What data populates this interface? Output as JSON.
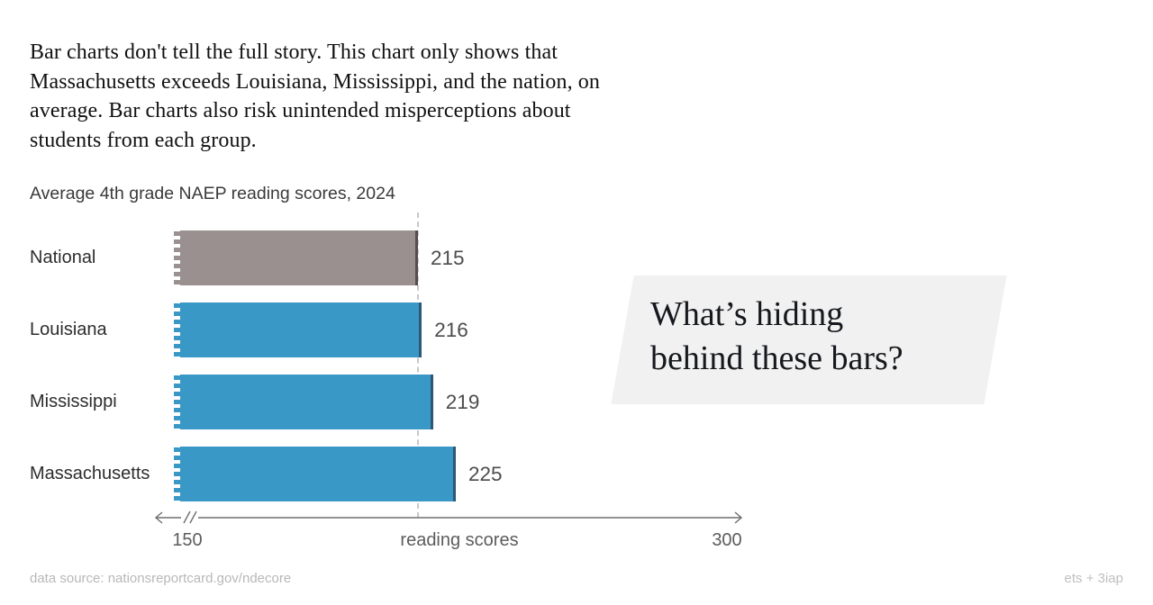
{
  "intro": {
    "lines": [
      "Bar charts don't tell the full story. This chart only shows that",
      "Massachusetts exceeds Louisiana, Mississippi, and the nation, on",
      "average. Bar charts also risk unintended misperceptions about",
      "students from each group."
    ]
  },
  "chart_data": {
    "type": "bar",
    "orientation": "horizontal",
    "title": "Average 4th grade NAEP reading scores, 2024",
    "categories": [
      "National",
      "Louisiana",
      "Mississippi",
      "Massachusetts"
    ],
    "values": [
      215,
      216,
      219,
      225
    ],
    "xlabel": "reading scores",
    "xlim": [
      150,
      300
    ],
    "axis": {
      "min_label": "150",
      "max_label": "300",
      "axis_break_at_min": true,
      "arrows_both_ends": true
    },
    "reference_value": 215,
    "grid": false,
    "legend": "none",
    "colors": {
      "national_fill": "#9A908F",
      "national_edge": "#564E4D",
      "state_fill": "#3A98C6",
      "state_edge": "#2C5876",
      "reference_line": "#c8c8c8"
    }
  },
  "callout": {
    "line1": "What’s hiding",
    "line2": "behind these bars?",
    "background": "#f1f1f1"
  },
  "footer": {
    "source": "data source: nationsreportcard.gov/ndecore",
    "credit": "ets + 3iap"
  }
}
